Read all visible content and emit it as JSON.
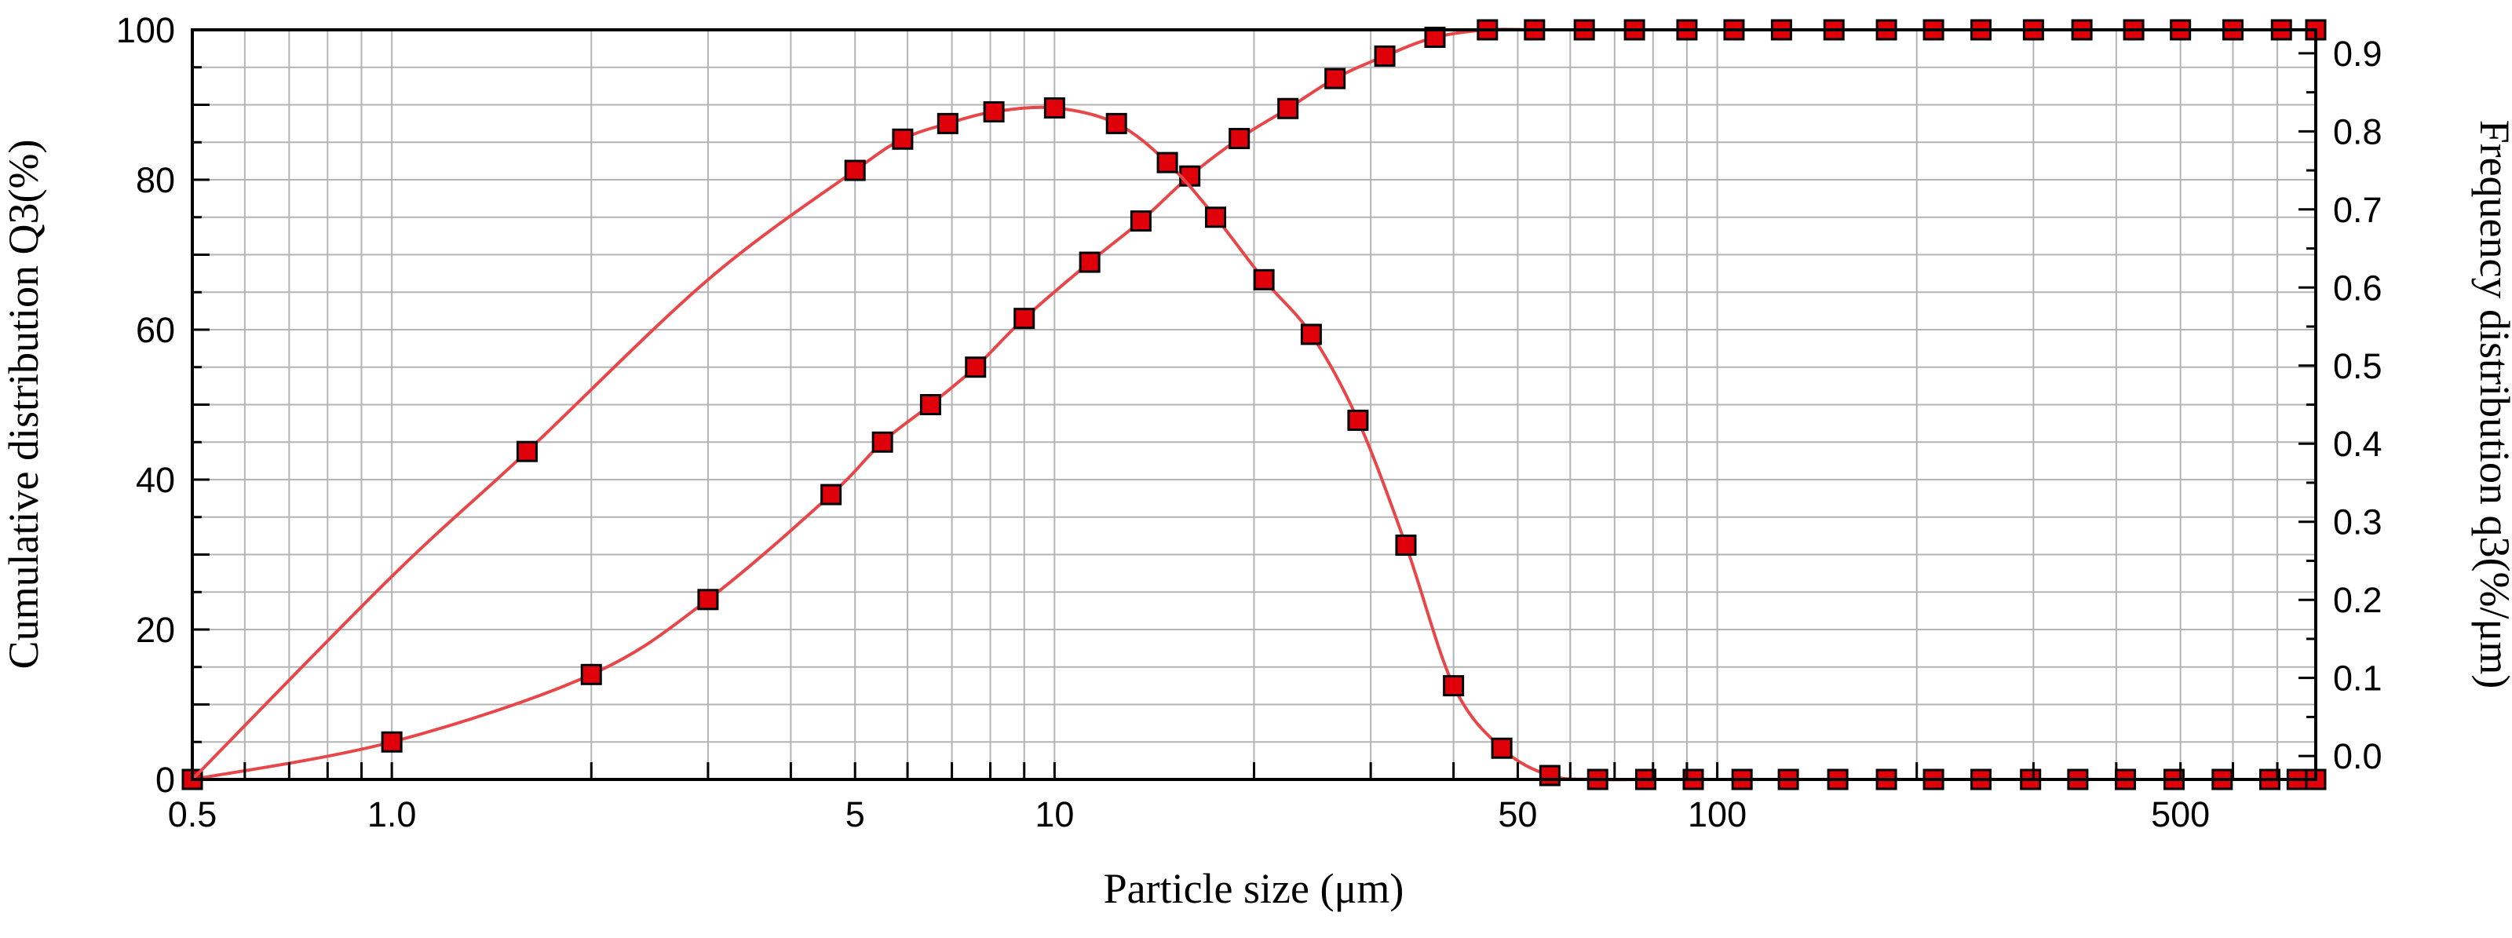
{
  "chart_data": {
    "type": "line",
    "x_scale": "log",
    "xlabel": "Particle size (μm)",
    "ylabel_left": "Cumulative distribution Q3(%)",
    "ylabel_right": "Frequency distribution q3(%/μm)",
    "xlim": [
      0.5,
      800
    ],
    "ylim_left": [
      0,
      100
    ],
    "ylim_right": [
      -0.03,
      0.93
    ],
    "x_ticks": [
      {
        "value": 0.5,
        "label": "0.5"
      },
      {
        "value": 1.0,
        "label": "1.0"
      },
      {
        "value": 5,
        "label": "5"
      },
      {
        "value": 10,
        "label": "10"
      },
      {
        "value": 50,
        "label": "50"
      },
      {
        "value": 100,
        "label": "100"
      },
      {
        "value": 500,
        "label": "500"
      }
    ],
    "y_left_ticks": [
      {
        "value": 0,
        "label": "0"
      },
      {
        "value": 20,
        "label": "20"
      },
      {
        "value": 40,
        "label": "40"
      },
      {
        "value": 60,
        "label": "60"
      },
      {
        "value": 80,
        "label": "80"
      },
      {
        "value": 100,
        "label": "100"
      }
    ],
    "y_right_ticks": [
      {
        "value": 0.0,
        "label": "0.0"
      },
      {
        "value": 0.1,
        "label": "0.1"
      },
      {
        "value": 0.2,
        "label": "0.2"
      },
      {
        "value": 0.3,
        "label": "0.3"
      },
      {
        "value": 0.4,
        "label": "0.4"
      },
      {
        "value": 0.5,
        "label": "0.5"
      },
      {
        "value": 0.6,
        "label": "0.6"
      },
      {
        "value": 0.7,
        "label": "0.7"
      },
      {
        "value": 0.8,
        "label": "0.8"
      },
      {
        "value": 0.9,
        "label": "0.9"
      }
    ],
    "grid": true,
    "colors": {
      "line": "#e8474a",
      "marker_fill": "#e0000a",
      "marker_edge": "#000000",
      "grid": "#b4b4b4",
      "axis": "#000000"
    },
    "series": [
      {
        "name": "Cumulative distribution Q3",
        "axis": "left",
        "x": [
          0.5,
          1.0,
          2.0,
          3.0,
          4.6,
          5.5,
          6.5,
          7.6,
          9.0,
          11.3,
          13.5,
          16.0,
          19.0,
          22.5,
          26.5,
          31.5,
          37.5,
          45,
          53,
          63,
          75,
          90,
          106,
          125,
          150,
          180,
          212,
          250,
          300,
          355,
          425,
          500,
          600,
          710,
          800
        ],
        "values": [
          0,
          5,
          14,
          24,
          38,
          45,
          50,
          55,
          61.5,
          69,
          74.5,
          80.5,
          85.5,
          89.5,
          93.5,
          96.5,
          99,
          100,
          100,
          100,
          100,
          100,
          100,
          100,
          100,
          100,
          100,
          100,
          100,
          100,
          100,
          100,
          100,
          100,
          100
        ]
      },
      {
        "name": "Frequency distribution q3",
        "axis": "right",
        "x": [
          0.5,
          1.0,
          1.6,
          3.0,
          5.0,
          5.9,
          6.9,
          8.1,
          10.0,
          12.4,
          14.8,
          17.5,
          20.7,
          24.4,
          28.7,
          33.9,
          40,
          47.3,
          55.9,
          66,
          78,
          92,
          109,
          128,
          152,
          180,
          212,
          250,
          297,
          350,
          413,
          489,
          578,
          682,
          750,
          800
        ],
        "values": [
          -0.03,
          0.23,
          0.39,
          0.61,
          0.75,
          0.79,
          0.81,
          0.825,
          0.83,
          0.81,
          0.76,
          0.69,
          0.61,
          0.54,
          0.43,
          0.27,
          0.09,
          0.01,
          -0.025,
          -0.03,
          -0.03,
          -0.03,
          -0.03,
          -0.03,
          -0.03,
          -0.03,
          -0.03,
          -0.03,
          -0.03,
          -0.03,
          -0.03,
          -0.03,
          -0.03,
          -0.03,
          -0.03,
          -0.03
        ],
        "markers_at": [
          1.6,
          5.0,
          5.9,
          6.9,
          8.1,
          10.0,
          12.4,
          14.8,
          17.5,
          20.7,
          24.4,
          28.7,
          33.9,
          40,
          47.3,
          55.9,
          66,
          78,
          92,
          109,
          128,
          152,
          180,
          212,
          250,
          297,
          350,
          413,
          489,
          578,
          682,
          750,
          800
        ]
      }
    ]
  }
}
